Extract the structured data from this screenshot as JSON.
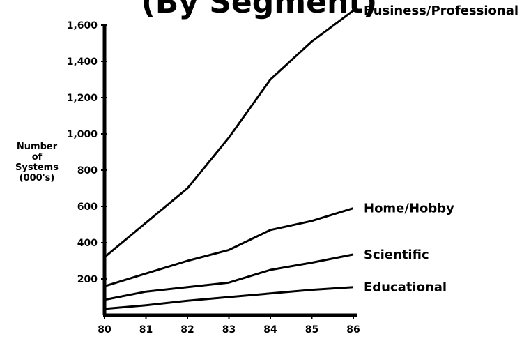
{
  "chart_data": {
    "type": "line",
    "title": "(By Segment)",
    "ylabel": [
      "Number",
      "of",
      "Systems",
      "(000's)"
    ],
    "xlabel": "",
    "x": [
      "80",
      "81",
      "82",
      "83",
      "84",
      "85",
      "86"
    ],
    "xlim": [
      80,
      86
    ],
    "ylim": [
      0,
      1700
    ],
    "y_ticks": [
      "200",
      "400",
      "600",
      "800",
      "1,000",
      "1,200",
      "1,400",
      "1,600"
    ],
    "y_tick_values": [
      200,
      400,
      600,
      800,
      1000,
      1200,
      1400,
      1600
    ],
    "grid": false,
    "legend": "series labels at right end of lines",
    "series": [
      {
        "name": "Business/Professional",
        "values": [
          320,
          510,
          700,
          980,
          1300,
          1510,
          1680
        ]
      },
      {
        "name": "Home/Hobby",
        "values": [
          160,
          230,
          300,
          360,
          470,
          520,
          590
        ]
      },
      {
        "name": "Scientific",
        "values": [
          85,
          130,
          155,
          180,
          250,
          290,
          335
        ]
      },
      {
        "name": "Educational",
        "values": [
          35,
          55,
          80,
          100,
          120,
          140,
          155
        ]
      }
    ],
    "colors": {
      "line": "#000000",
      "background": "#ffffff"
    }
  }
}
